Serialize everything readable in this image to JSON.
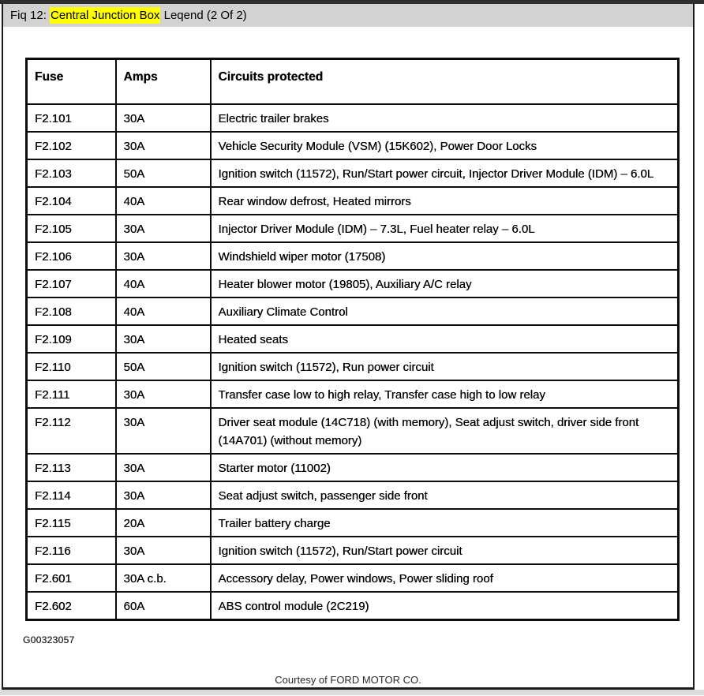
{
  "titlebar": {
    "prefix": "Fiq 12: ",
    "highlighted": "Central Junction Box",
    "suffix": " Leqend (2 Of 2)"
  },
  "table": {
    "columns": [
      "Fuse",
      "Amps",
      "Circuits protected"
    ],
    "rows": [
      [
        "F2.101",
        "30A",
        "Electric trailer brakes"
      ],
      [
        "F2.102",
        "30A",
        "Vehicle Security Module (VSM) (15K602), Power Door Locks"
      ],
      [
        "F2.103",
        "50A",
        "Ignition switch (11572), Run/Start power circuit, Injector Driver Module (IDM) – 6.0L"
      ],
      [
        "F2.104",
        "40A",
        "Rear window defrost, Heated mirrors"
      ],
      [
        "F2.105",
        "30A",
        "Injector Driver Module (IDM) – 7.3L, Fuel heater relay – 6.0L"
      ],
      [
        "F2.106",
        "30A",
        "Windshield wiper motor (17508)"
      ],
      [
        "F2.107",
        "40A",
        "Heater blower motor (19805), Auxiliary A/C relay"
      ],
      [
        "F2.108",
        "40A",
        "Auxiliary Climate Control"
      ],
      [
        "F2.109",
        "30A",
        "Heated seats"
      ],
      [
        "F2.110",
        "50A",
        "Ignition switch (11572), Run power circuit"
      ],
      [
        "F2.111",
        "30A",
        "Transfer case low to high relay, Transfer case high to low relay"
      ],
      [
        "F2.112",
        "30A",
        "Driver seat module (14C718) (with memory), Seat adjust switch, driver side front (14A701) (without memory)"
      ],
      [
        "F2.113",
        "30A",
        "Starter motor (11002)"
      ],
      [
        "F2.114",
        "30A",
        "Seat adjust switch, passenger side front"
      ],
      [
        "F2.115",
        "20A",
        "Trailer battery charge"
      ],
      [
        "F2.116",
        "30A",
        "Ignition switch (11572), Run/Start power circuit"
      ],
      [
        "F2.601",
        "30A c.b.",
        "Accessory delay, Power windows, Power sliding roof"
      ],
      [
        "F2.602",
        "60A",
        "ABS control module (2C219)"
      ]
    ]
  },
  "footer": {
    "figure_code": "G00323057",
    "courtesy": "Courtesy of FORD MOTOR CO."
  },
  "colors": {
    "titlebar_bg": "#d2d2d2",
    "highlight_bg": "#ffff00",
    "top_strip": "#2e2e2e",
    "bottom_strip": "#dcdcdc",
    "ink": "#0d0d0d",
    "page_bg": "#ffffff",
    "courtesy_color": "#2a2a2a"
  }
}
